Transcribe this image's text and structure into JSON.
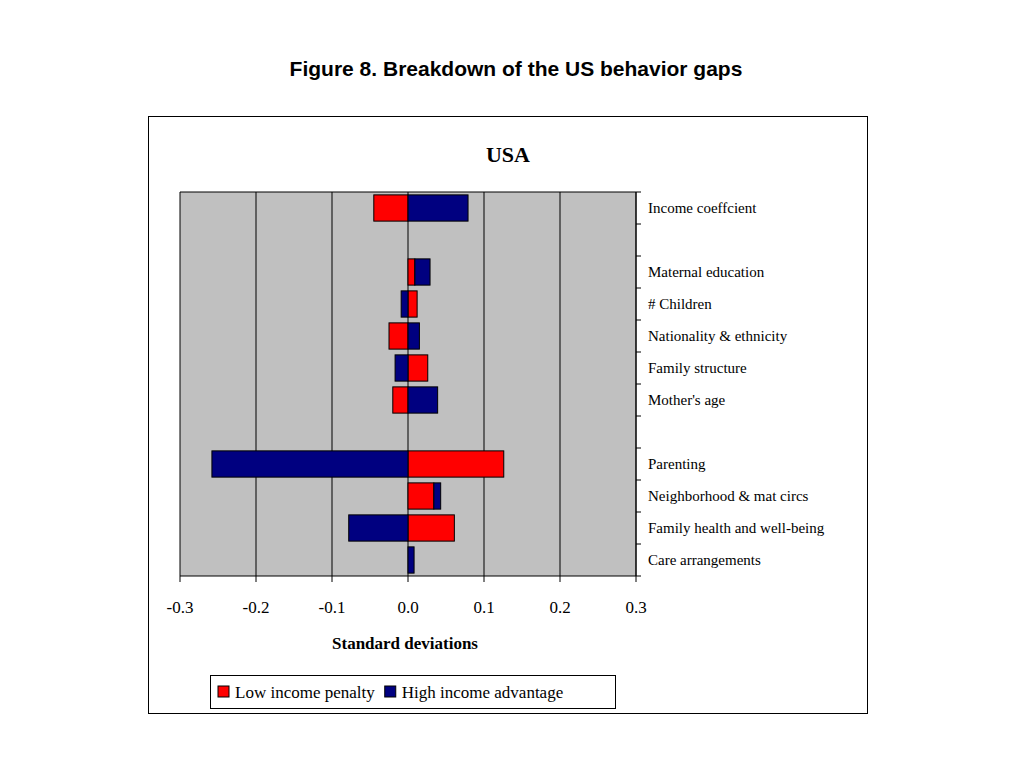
{
  "chart_data": {
    "type": "bar",
    "title": "Figure 8. Breakdown of the US behavior gaps",
    "subtitle": "USA",
    "x_label": "Standard deviations",
    "orientation": "horizontal",
    "stacked": true,
    "grid": true,
    "legend": "bottom",
    "categories": [
      "Income coeffcient",
      null,
      "Maternal education",
      "# Children",
      "Nationality & ethnicity",
      "Family structure",
      "Mother's age",
      null,
      "Parenting",
      "Neighborhood & mat circs",
      "Family health and well-being",
      "Care arrangements"
    ],
    "series": [
      {
        "name": "Low income penalty",
        "color": "#ff0000",
        "values": [
          -0.045,
          null,
          0.009,
          0.012,
          -0.025,
          0.026,
          -0.02,
          null,
          0.126,
          0.034,
          0.061,
          0
        ]
      },
      {
        "name": "High income advantage",
        "color": "#000080",
        "values": [
          0.079,
          null,
          0.02,
          -0.009,
          0.015,
          -0.017,
          0.039,
          null,
          -0.258,
          0.009,
          -0.078,
          0.008
        ]
      }
    ],
    "xlim": [
      -0.3,
      0.3
    ],
    "xticks": [
      -0.3,
      -0.2,
      -0.1,
      {
        "value": 0,
        "label": "0.0"
      },
      0.1,
      0.2,
      0.3
    ]
  }
}
